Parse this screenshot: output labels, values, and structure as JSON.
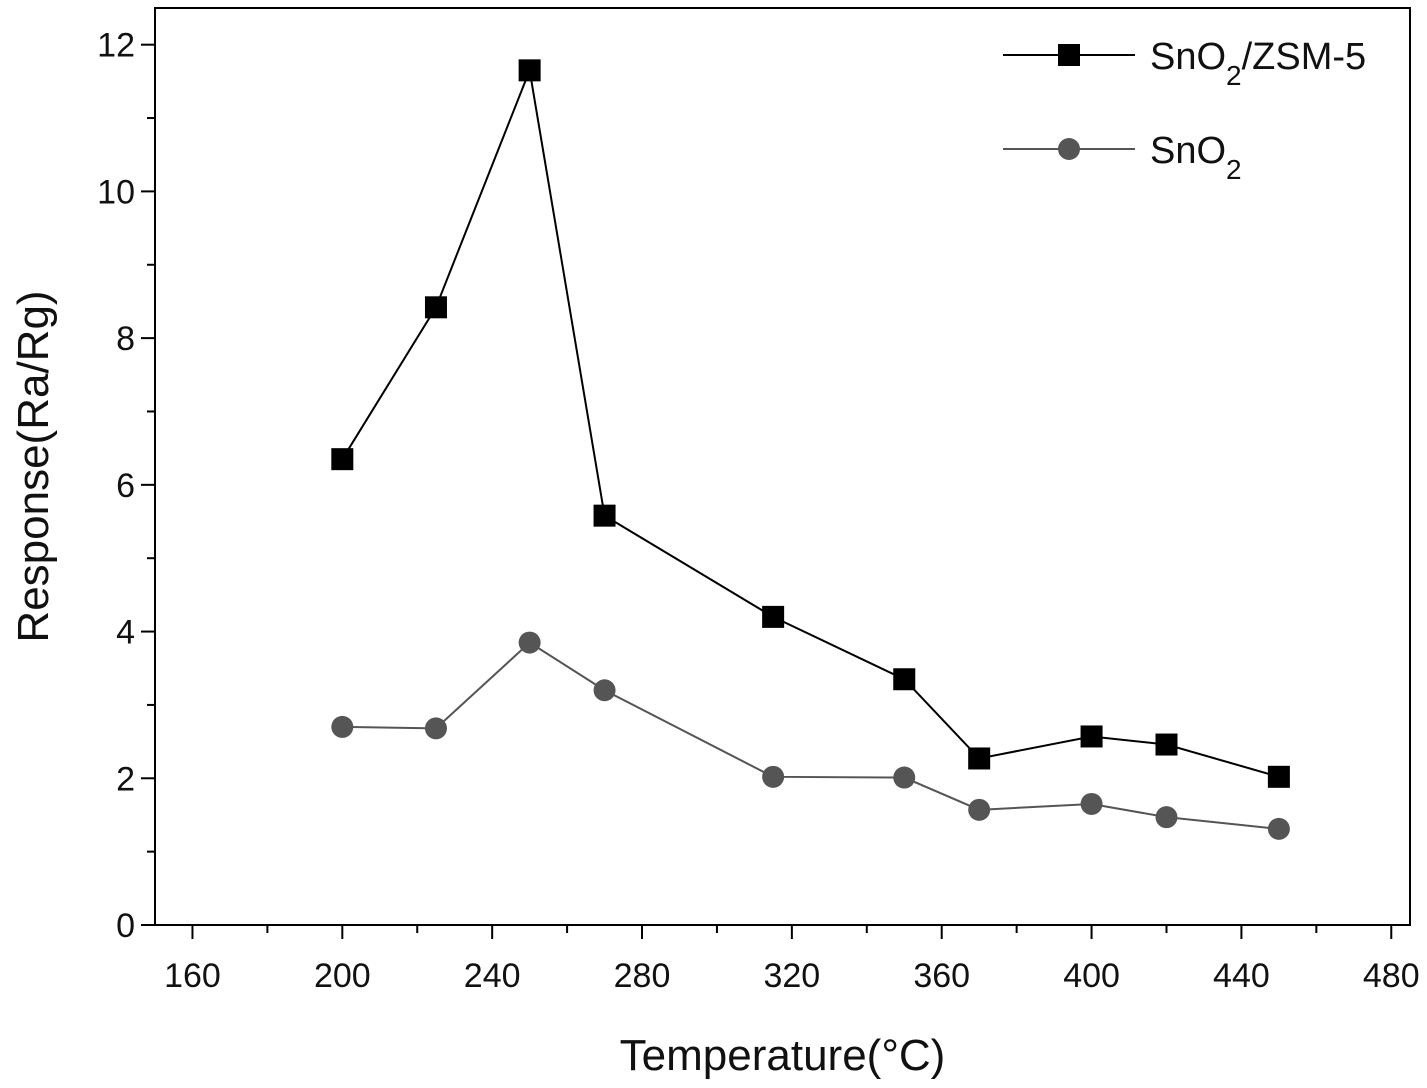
{
  "chart_data": {
    "type": "line",
    "xlabel": "Temperature(°C)",
    "ylabel": "Response(Ra/Rg)",
    "xlim": [
      150,
      485
    ],
    "ylim": [
      0,
      12.5
    ],
    "xticks": [
      160,
      200,
      240,
      280,
      320,
      360,
      400,
      440,
      480
    ],
    "yticks": [
      0,
      2,
      4,
      6,
      8,
      10,
      12
    ],
    "grid": false,
    "legend_position": "top-right",
    "series": [
      {
        "name_main": "SnO",
        "name_sub": "2",
        "name_tail": "/ZSM-5",
        "marker": "square",
        "color": "#000000",
        "x": [
          200,
          225,
          250,
          270,
          315,
          350,
          370,
          400,
          420,
          450
        ],
        "values": [
          6.35,
          8.42,
          11.65,
          5.58,
          4.2,
          3.35,
          2.27,
          2.57,
          2.46,
          2.02
        ]
      },
      {
        "name_main": "SnO",
        "name_sub": "2",
        "name_tail": "",
        "marker": "circle",
        "color": "#555555",
        "x": [
          200,
          225,
          250,
          270,
          315,
          350,
          370,
          400,
          420,
          450
        ],
        "values": [
          2.7,
          2.68,
          3.85,
          3.2,
          2.02,
          2.01,
          1.57,
          1.65,
          1.47,
          1.31
        ]
      }
    ]
  }
}
